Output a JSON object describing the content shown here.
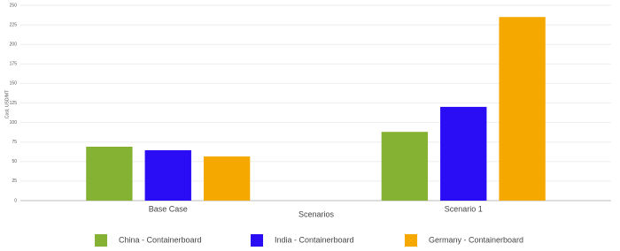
{
  "chart_data": {
    "type": "bar",
    "y_label": "Cost, USD/MT",
    "x_label": "Scenarios",
    "categories": [
      "Base Case",
      "Scenario 1"
    ],
    "series": [
      {
        "name": "China - Containerboard",
        "color": "#86b233",
        "values": [
          69,
          88
        ]
      },
      {
        "name": "India - Containerboard",
        "color": "#2a0cf5",
        "values": [
          64.5,
          120
        ]
      },
      {
        "name": "Germany - Containerboard",
        "color": "#f5a800",
        "values": [
          56.5,
          235
        ]
      }
    ],
    "ylim": [
      0,
      250
    ],
    "yticks": [
      0,
      25,
      50,
      75,
      100,
      125,
      150,
      175,
      200,
      225,
      250
    ],
    "grid": true,
    "legend": "bottom"
  }
}
